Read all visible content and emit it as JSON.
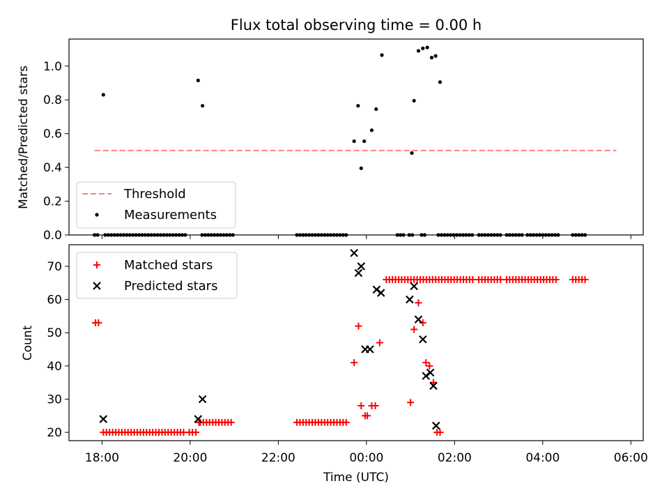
{
  "title": "Flux total observing time = 0.00 h",
  "colors": {
    "threshold": "#ff7f7f",
    "measurements": "#000000",
    "matched": "#ff0000",
    "predicted": "#000000"
  },
  "chart_data": [
    {
      "type": "scatter",
      "name": "ratio-panel",
      "ylabel": "Matched/Predicted stars",
      "ylim": [
        0,
        1.16
      ],
      "xlim": [
        17.25,
        30.28
      ],
      "yticks": [
        0.0,
        0.2,
        0.4,
        0.6,
        0.8,
        1.0
      ],
      "ytick_labels": [
        "0.0",
        "0.2",
        "0.4",
        "0.6",
        "0.8",
        "1.0"
      ],
      "legend": {
        "placement": "lower-left",
        "threshold_label": "Threshold",
        "measurements_label": "Measurements"
      },
      "threshold": {
        "value": 0.5,
        "x_start": 17.83,
        "x_end": 29.67
      },
      "measurements": {
        "zero_ranges": [
          [
            17.83,
            17.95
          ],
          [
            18.07,
            19.9
          ],
          [
            20.27,
            20.97
          ],
          [
            22.42,
            23.6
          ],
          [
            24.7,
            24.85
          ],
          [
            24.97,
            25.1
          ],
          [
            25.25,
            25.38
          ],
          [
            25.63,
            26.45
          ],
          [
            26.55,
            27.08
          ],
          [
            27.18,
            27.58
          ],
          [
            27.65,
            28.35
          ],
          [
            28.68,
            29.02
          ]
        ],
        "x": [
          18.03,
          20.18,
          20.28,
          23.72,
          23.81,
          23.88,
          23.95,
          24.12,
          24.22,
          24.35,
          25.03,
          25.08,
          25.18,
          25.28,
          25.38,
          25.48,
          25.57,
          25.67
        ],
        "y": [
          0.83,
          0.915,
          0.765,
          0.555,
          0.765,
          0.395,
          0.555,
          0.62,
          0.745,
          1.065,
          0.485,
          0.795,
          1.09,
          1.105,
          1.11,
          1.05,
          1.06,
          0.905
        ]
      }
    },
    {
      "type": "scatter",
      "name": "count-panel",
      "xlabel": "Time (UTC)",
      "ylabel": "Count",
      "ylim": [
        17.5,
        76.5
      ],
      "xlim": [
        17.25,
        30.28
      ],
      "yticks": [
        20,
        30,
        40,
        50,
        60,
        70
      ],
      "ytick_labels": [
        "20",
        "30",
        "40",
        "50",
        "60",
        "70"
      ],
      "xticks": [
        18,
        20,
        22,
        24,
        26,
        28,
        30
      ],
      "xtick_labels": [
        "18:00",
        "20:00",
        "22:00",
        "00:00",
        "02:00",
        "04:00",
        "06:00"
      ],
      "legend": {
        "placement": "top-left",
        "matched_label": "Matched stars",
        "predicted_label": "Predicted stars"
      },
      "matched_runs": [
        {
          "from": 18.03,
          "to": 19.9,
          "y": 20
        },
        {
          "from": 20.23,
          "to": 20.97,
          "y": 23
        },
        {
          "from": 22.42,
          "to": 23.6,
          "y": 23
        },
        {
          "from": 24.45,
          "to": 26.43,
          "y": 66
        },
        {
          "from": 26.55,
          "to": 27.08,
          "y": 66
        },
        {
          "from": 27.18,
          "to": 28.35,
          "y": 66
        },
        {
          "from": 28.68,
          "to": 28.97,
          "y": 66
        }
      ],
      "matched": {
        "x": [
          17.85,
          17.92,
          19.98,
          20.05,
          20.13,
          20.2,
          23.72,
          23.82,
          23.88,
          23.97,
          24.02,
          24.12,
          24.2,
          24.3,
          25.0,
          25.08,
          25.18,
          25.28,
          25.35,
          25.43,
          25.52,
          25.6,
          25.67
        ],
        "y": [
          53,
          53,
          20,
          20,
          20,
          23,
          41,
          52,
          28,
          25,
          25,
          28,
          28,
          47,
          29,
          51,
          59,
          53,
          41,
          40,
          35,
          20,
          20
        ]
      },
      "predicted": {
        "x": [
          18.03,
          20.18,
          20.28,
          23.72,
          23.82,
          23.88,
          23.97,
          24.08,
          24.23,
          24.33,
          24.98,
          25.08,
          25.18,
          25.28,
          25.35,
          25.45,
          25.52,
          25.58
        ],
        "y": [
          24,
          24,
          30,
          74,
          68,
          70,
          45,
          45,
          63,
          62,
          60,
          64,
          54,
          48,
          37,
          38,
          34,
          22
        ]
      }
    }
  ]
}
